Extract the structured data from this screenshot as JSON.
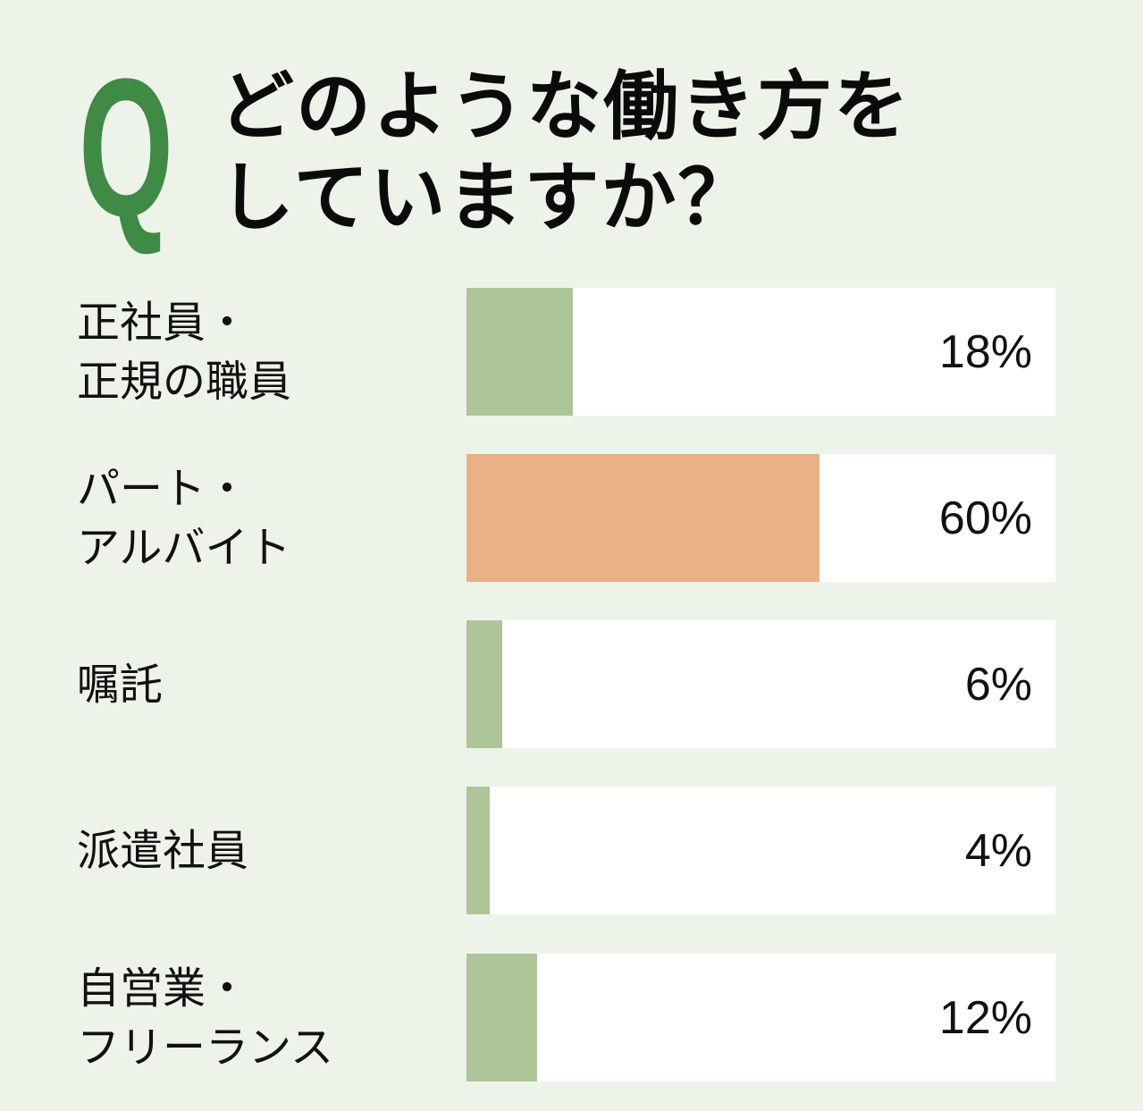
{
  "header": {
    "q_mark": "Q",
    "title_lines": [
      "どのような働き方を",
      "していますか？"
    ]
  },
  "colors": {
    "background": "#EEF3EA",
    "q_mark": "#3F8A45",
    "bar_default": "#ADC598",
    "bar_highlight": "#E9B185",
    "track": "#FFFFFF"
  },
  "rows": [
    {
      "label_lines": [
        "正社員・",
        "正規の職員"
      ],
      "value": 18,
      "value_label": "18%",
      "highlight": false
    },
    {
      "label_lines": [
        "パート・",
        "アルバイト"
      ],
      "value": 60,
      "value_label": "60%",
      "highlight": true
    },
    {
      "label_lines": [
        "嘱託"
      ],
      "value": 6,
      "value_label": "6%",
      "highlight": false
    },
    {
      "label_lines": [
        "派遣社員"
      ],
      "value": 4,
      "value_label": "4%",
      "highlight": false
    },
    {
      "label_lines": [
        "自営業・",
        "フリーランス"
      ],
      "value": 12,
      "value_label": "12%",
      "highlight": false
    }
  ],
  "chart_data": {
    "type": "bar",
    "orientation": "horizontal",
    "title": "どのような働き方をしていますか？",
    "categories": [
      "正社員・正規の職員",
      "パート・アルバイト",
      "嘱託",
      "派遣社員",
      "自営業・フリーランス"
    ],
    "values": [
      18,
      60,
      6,
      4,
      12
    ],
    "unit": "%",
    "xlim": [
      0,
      100
    ],
    "xlabel": "",
    "ylabel": "",
    "grid": false,
    "legend": null,
    "highlighted_category": "パート・アルバイト"
  }
}
